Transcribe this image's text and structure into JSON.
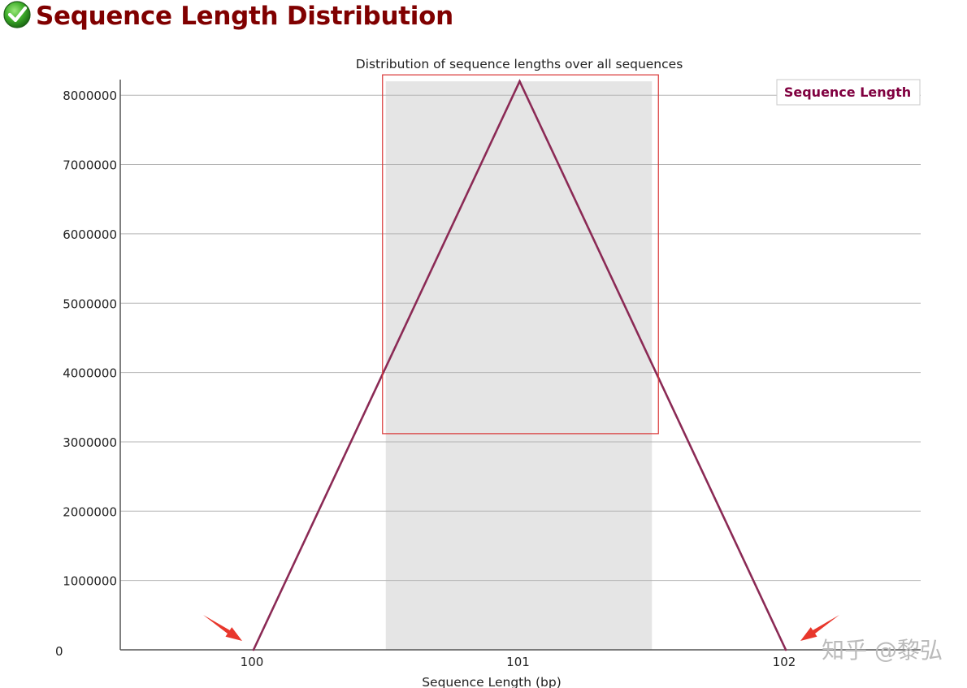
{
  "header": {
    "title": "Sequence Length Distribution",
    "status_icon": "check-circle-icon",
    "status": "pass"
  },
  "chart_data": {
    "type": "line",
    "title": "Distribution of sequence lengths over all sequences",
    "xlabel": "Sequence Length (bp)",
    "ylabel": "",
    "categories": [
      "100",
      "101",
      "102"
    ],
    "series": [
      {
        "name": "Sequence Length",
        "values": [
          0,
          8200000,
          0
        ],
        "color": "#8b2a55"
      }
    ],
    "y_ticks": [
      "0",
      "1000000",
      "2000000",
      "3000000",
      "4000000",
      "5000000",
      "6000000",
      "7000000",
      "8000000"
    ],
    "ylim": [
      0,
      8200000
    ],
    "grid": true,
    "legend_position": "top-right",
    "shaded_band": {
      "x_from": 100.5,
      "x_to": 101.5,
      "color": "#e5e5e5"
    },
    "annotation_box": {
      "x_from": 100.5,
      "x_to": 101.5,
      "y_from": 3200000,
      "y_to": 8200000,
      "color": "#d93636"
    },
    "arrow_annotations": [
      {
        "points_to": "100",
        "color": "#e8372c"
      },
      {
        "points_to": "102",
        "color": "#e8372c"
      }
    ]
  },
  "watermark": {
    "text": "知乎 @黎弘"
  }
}
